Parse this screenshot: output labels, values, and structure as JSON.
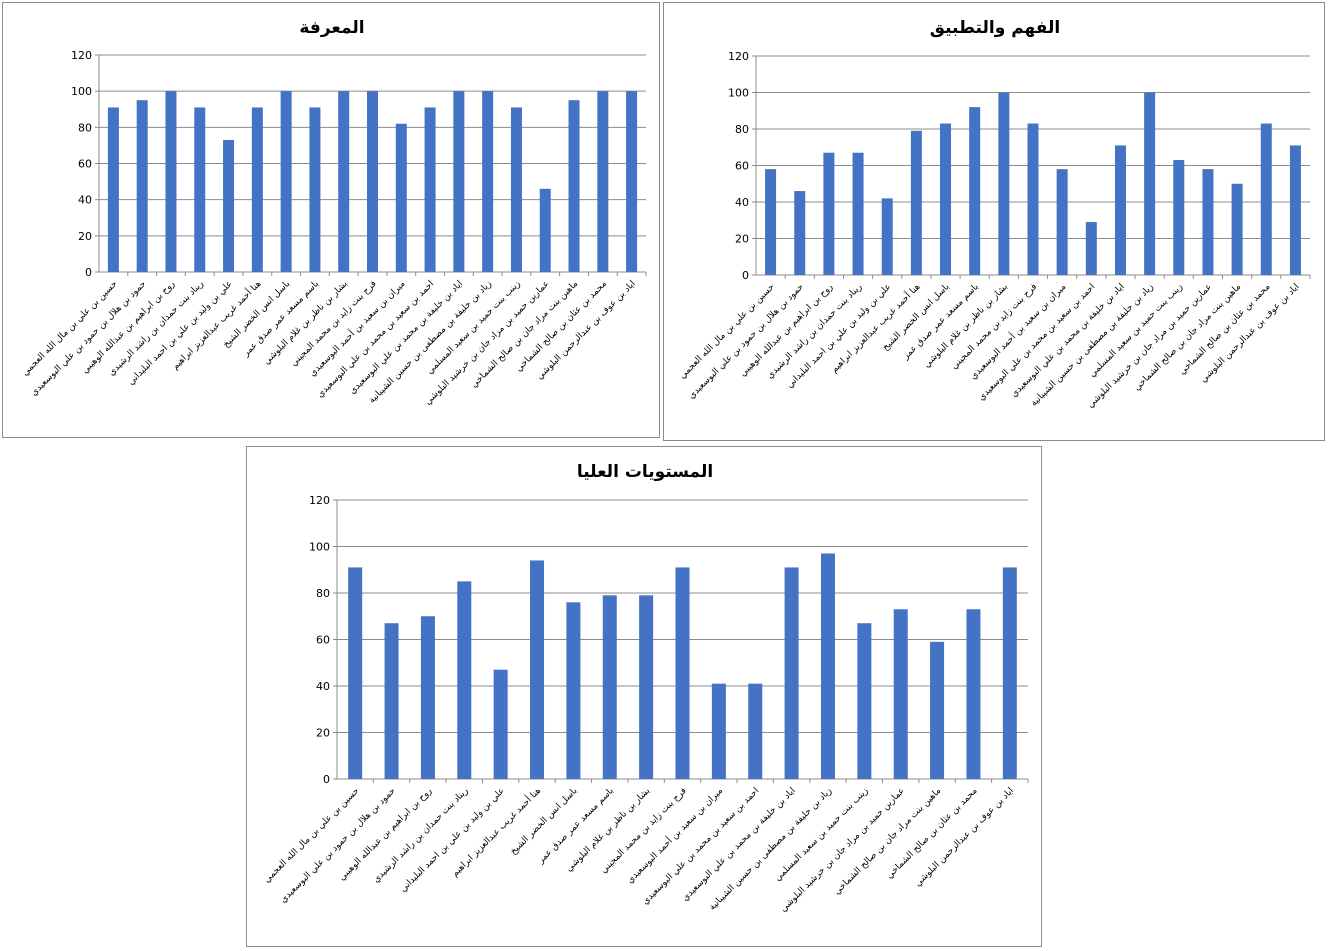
{
  "chart_data": [
    {
      "type": "bar",
      "title": "المعرفة",
      "color": "#4472C4",
      "ylim": [
        0,
        120
      ],
      "yticks": [
        0,
        20,
        40,
        60,
        80,
        100,
        120
      ],
      "grid": true,
      "legend": "none",
      "categories": [
        "حسين بن علي بن مال الله العجمي",
        "حمود بن هلال بن حمود بن علي البوسعيدي",
        "روح بن ابراهيم بن عبدالله الوهيبي",
        "ريناد بنت حمدان بن راشد الرشيدي",
        "علي بن وليد بن علي بن احمد البليداني",
        "هنا أحمد غريب عبدالعزيز ابراهيم",
        "باسل انس الخضر الشيخ",
        "باسم مسعد عمر صدق عمر",
        "بشار بن ناظر بن غلام البلوشي",
        "فرح بنت زايد بن محمد المجيني",
        "ميران بن سعيد بن أحمد البوسعيدي",
        "احمد بن سعيد بن محمد بن علي البوسعيدي",
        "اياد بن خليفة بن محمد بن علي البوسعيدي",
        "زياد بن خليفة بن مصطفى بن حسين الشيبانية",
        "زينب بنت حميد بن سعيد المسلمي",
        "عمارين حميد بن مراد جان بن خرشيد البلوشي",
        "ماهين بنت مراد جان بن صالح الشماخي",
        "محمد بن عثان بن صالح الشماخي",
        "اياد بن عوف بن عبدالرحمن البلوشي"
      ],
      "values": [
        91,
        95,
        100,
        91,
        73,
        91,
        100,
        91,
        100,
        100,
        82,
        91,
        100,
        100,
        91,
        46,
        95,
        100,
        100
      ]
    },
    {
      "type": "bar",
      "title": "الفهم والتطبيق",
      "color": "#4472C4",
      "ylim": [
        0,
        120
      ],
      "yticks": [
        0,
        20,
        40,
        60,
        80,
        100,
        120
      ],
      "grid": true,
      "legend": "none",
      "categories": [
        "حسين بن علي بن مال الله العجمي",
        "حمود بن هلال بن حمود بن علي البوسعيدي",
        "روح بن ابراهيم بن عبدالله الوهيبي",
        "ريناد بنت حمدان بن راشد الرشيدي",
        "علي بن وليد بن علي بن احمد البليداني",
        "هنا أحمد غريب عبدالعزيز ابراهيم",
        "باسل انس الخضر الشيخ",
        "باسم مسعد عمر صدق عمر",
        "بشار بن ناظر بن غلام البلوشي",
        "فرح بنت زايد بن محمد المجيني",
        "ميران بن سعيد بن أحمد البوسعيدي",
        "احمد بن سعيد بن محمد بن علي البوسعيدي",
        "اياد بن خليفة بن محمد بن علي البوسعيدي",
        "زياد بن خليفة بن مصطفى بن حسين الشيبانية",
        "زينب بنت حميد بن سعيد المسلمي",
        "عمارين حميد بن مراد جان بن خرشيد البلوشي",
        "ماهين بنت مراد جان بن صالح الشماخي",
        "محمد بن عثان بن صالح الشماخي",
        "اياد بن عوف بن عبدالرحمن البلوشي"
      ],
      "values": [
        58,
        46,
        67,
        67,
        42,
        79,
        83,
        92,
        100,
        83,
        58,
        29,
        71,
        100,
        63,
        58,
        50,
        83,
        71
      ]
    },
    {
      "type": "bar",
      "title": "المستويات العليا",
      "color": "#4472C4",
      "ylim": [
        0,
        120
      ],
      "yticks": [
        0,
        20,
        40,
        60,
        80,
        100,
        120
      ],
      "grid": true,
      "legend": "none",
      "categories": [
        "حسين بن علي بن مال الله العجمي",
        "حمود بن هلال بن حمود بن علي البوسعيدي",
        "روح بن ابراهيم بن عبدالله الوهيبي",
        "ريناد بنت حمدان بن راشد الرشيدي",
        "علي بن وليد بن علي بن احمد البليداني",
        "هنا أحمد غريب عبدالعزيز ابراهيم",
        "باسل انس الخضر الشيخ",
        "باسم مسعد عمر صدق عمر",
        "بشار بن ناظر بن غلام البلوشي",
        "فرح بنت زايد بن محمد المجيني",
        "ميران بن سعيد بن أحمد البوسعيدي",
        "احمد بن سعيد بن محمد بن علي البوسعيدي",
        "اياد بن خليفة بن محمد بن علي البوسعيدي",
        "زياد بن خليفة بن مصطفى بن حسين الشيبانية",
        "زينب بنت حميد بن سعيد المسلمي",
        "عمارين حميد بن مراد جان بن خرشيد البلوشي",
        "ماهين بنت مراد جان بن صالح الشماخي",
        "محمد بن عثان بن صالح الشماخي",
        "اياد بن عوف بن عبدالرحمن البلوشي"
      ],
      "values": [
        91,
        67,
        70,
        85,
        47,
        94,
        76,
        79,
        79,
        91,
        41,
        41,
        91,
        97,
        67,
        73,
        59,
        73,
        91
      ]
    }
  ]
}
